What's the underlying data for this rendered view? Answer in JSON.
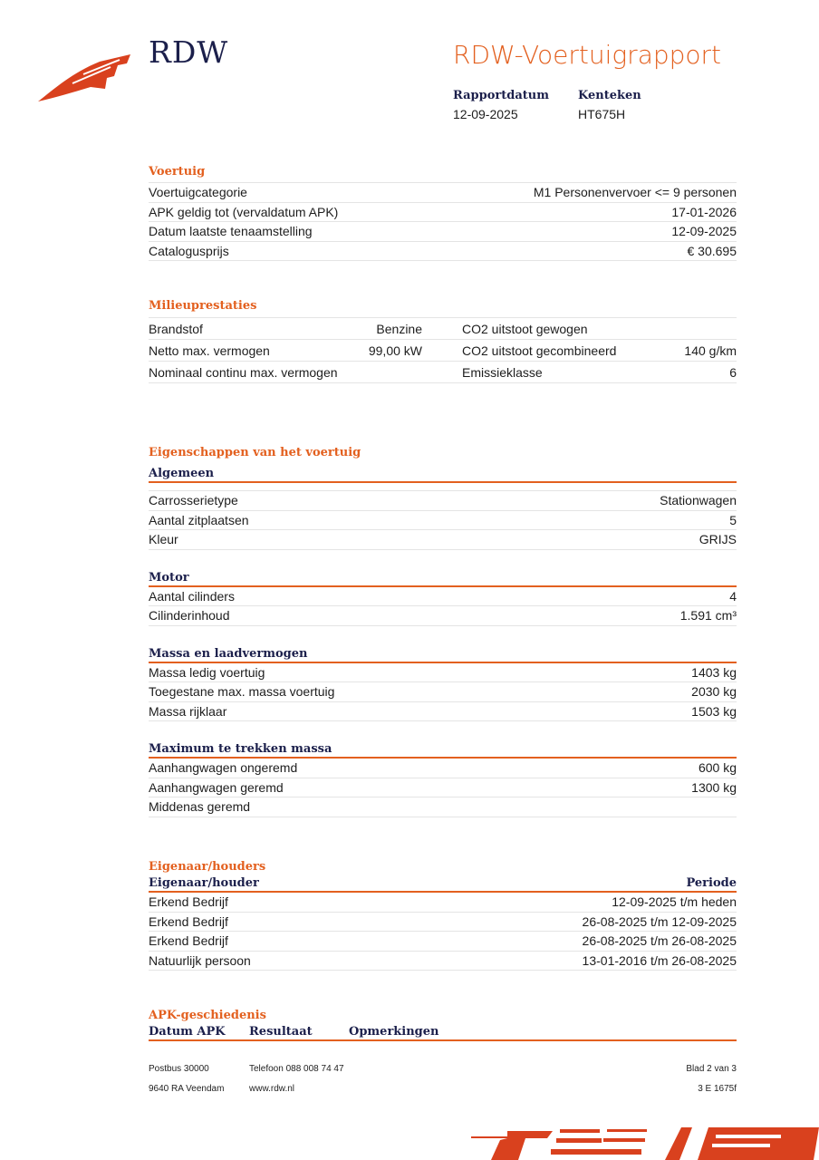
{
  "header": {
    "brand": "RDW",
    "title": "RDW-Voertuigrapport",
    "rapportdatum_label": "Rapportdatum",
    "rapportdatum": "12-09-2025",
    "kenteken_label": "Kenteken",
    "kenteken": "HT675H"
  },
  "voertuig": {
    "title": "Voertuig",
    "rows": [
      [
        "Voertuigcategorie",
        "M1 Personenvervoer <= 9 personen"
      ],
      [
        "APK geldig tot (vervaldatum APK)",
        "17-01-2026"
      ],
      [
        "Datum laatste tenaamstelling",
        "12-09-2025"
      ],
      [
        "Catalogusprijs",
        "€ 30.695"
      ]
    ]
  },
  "milieu": {
    "title": "Milieuprestaties",
    "rows": [
      [
        "Brandstof",
        "Benzine",
        "CO2 uitstoot gewogen",
        ""
      ],
      [
        "Netto max. vermogen",
        "99,00 kW",
        "CO2 uitstoot gecombineerd",
        "140 g/km"
      ],
      [
        "Nominaal continu max. vermogen",
        "",
        "Emissieklasse",
        "6"
      ]
    ]
  },
  "eigenschappen": {
    "title": "Eigenschappen van het voertuig",
    "groups": [
      {
        "title": "Algemeen",
        "rows": [
          [
            "Carrosserietype",
            "Stationwagen"
          ],
          [
            "Aantal zitplaatsen",
            "5"
          ],
          [
            "Kleur",
            "GRIJS"
          ]
        ]
      },
      {
        "title": "Motor",
        "rows": [
          [
            "Aantal cilinders",
            "4"
          ],
          [
            "Cilinderinhoud",
            "1.591 cm³"
          ]
        ]
      },
      {
        "title": "Massa en laadvermogen",
        "rows": [
          [
            "Massa ledig voertuig",
            "1403 kg"
          ],
          [
            "Toegestane max. massa voertuig",
            "2030 kg"
          ],
          [
            "Massa rijklaar",
            "1503 kg"
          ]
        ]
      },
      {
        "title": "Maximum te trekken massa",
        "rows": [
          [
            "Aanhangwagen ongeremd",
            "600 kg"
          ],
          [
            "Aanhangwagen geremd",
            "1300 kg"
          ],
          [
            "Middenas geremd",
            ""
          ]
        ]
      }
    ]
  },
  "eigenaar": {
    "title": "Eigenaar/houders",
    "col1": "Eigenaar/houder",
    "col2": "Periode",
    "rows": [
      [
        "Erkend Bedrijf",
        "12-09-2025 t/m heden"
      ],
      [
        "Erkend Bedrijf",
        "26-08-2025 t/m 12-09-2025"
      ],
      [
        "Erkend Bedrijf",
        "26-08-2025 t/m 26-08-2025"
      ],
      [
        "Natuurlijk persoon",
        "13-01-2016 t/m 26-08-2025"
      ]
    ]
  },
  "apk": {
    "title": "APK-geschiedenis",
    "cols": [
      "Datum APK",
      "Resultaat",
      "Opmerkingen"
    ]
  },
  "footer": {
    "postbus": "Postbus 30000",
    "plaats": "9640 RA Veendam",
    "telefoon": "Telefoon 088 008 74 47",
    "web": "www.rdw.nl",
    "blad": "Blad 2 van 3",
    "code": "3 E 1675f"
  },
  "colors": {
    "accent": "#e3601f",
    "navy": "#1b1f4b",
    "logo": "#d9411e"
  }
}
